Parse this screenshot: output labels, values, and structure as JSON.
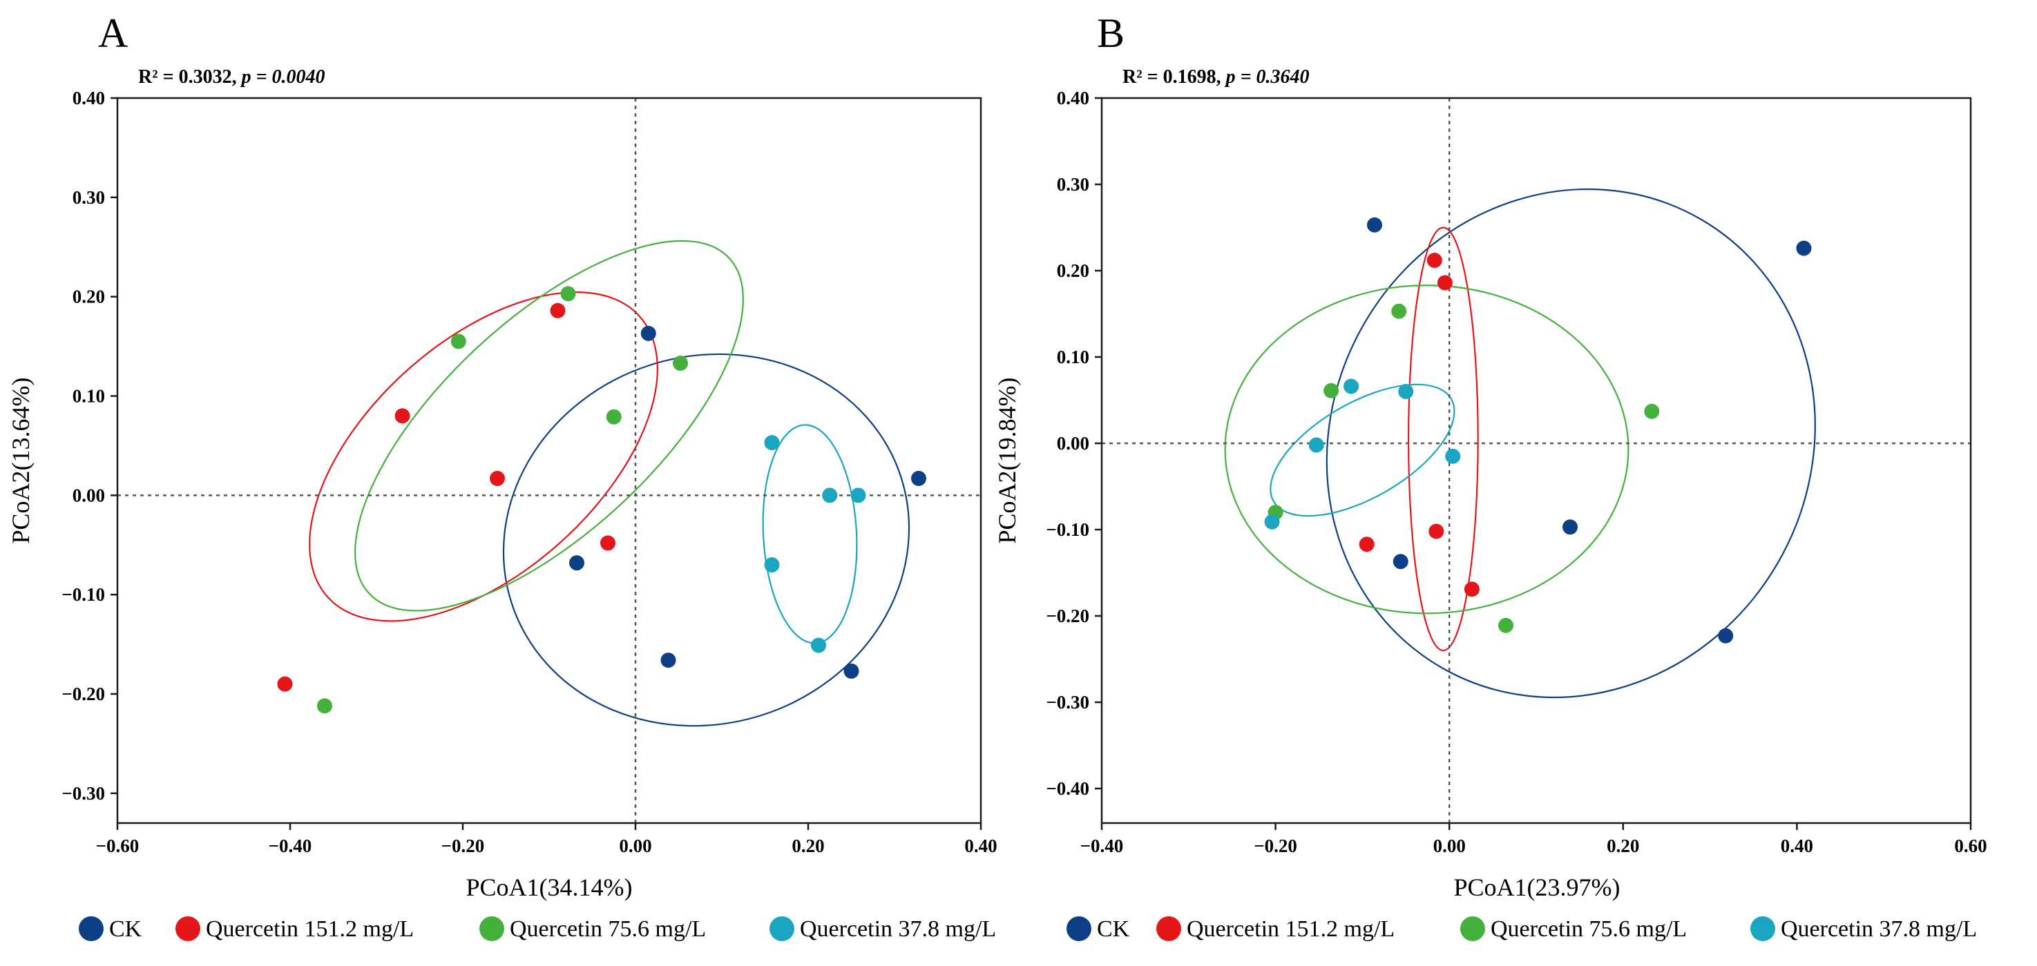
{
  "colors": {
    "CK": "#0d3f87",
    "Q151": "#e5161a",
    "Q75": "#43b13c",
    "Q37": "#1aa5c1"
  },
  "chart_data": [
    {
      "type": "scatter",
      "panel": "A",
      "stat_r2": "R² = 0.3032, ",
      "stat_p": "p = 0.0040",
      "xlabel": "PCoA1(34.14%)",
      "ylabel": "PCoA2(13.64%)",
      "xlim": [
        -0.6,
        0.4
      ],
      "ylim": [
        -0.33,
        0.4
      ],
      "xticks": [
        -0.6,
        -0.4,
        -0.2,
        0.0,
        0.2,
        0.4
      ],
      "xtick_labels": [
        "−0.60",
        "−0.40",
        "−0.20",
        "0.00",
        "0.20",
        "0.40"
      ],
      "yticks": [
        -0.3,
        -0.2,
        -0.1,
        0.0,
        0.1,
        0.2,
        0.3,
        0.4
      ],
      "ytick_labels": [
        "−0.30",
        "−0.20",
        "−0.10",
        "0.00",
        "0.10",
        "0.20",
        "0.30",
        "0.40"
      ],
      "grid": false,
      "series": [
        {
          "key": "CK",
          "points": [
            [
              0.015,
              0.163
            ],
            [
              -0.068,
              -0.068
            ],
            [
              0.038,
              -0.166
            ],
            [
              0.25,
              -0.177
            ],
            [
              0.328,
              0.017
            ]
          ],
          "ellipse": {
            "cx": 0.082,
            "cy": -0.045,
            "rx": 0.237,
            "ry": 0.185,
            "angle": 18
          }
        },
        {
          "key": "Q151",
          "points": [
            [
              -0.09,
              0.186
            ],
            [
              -0.27,
              0.08
            ],
            [
              -0.16,
              0.017
            ],
            [
              -0.032,
              -0.048
            ],
            [
              -0.406,
              -0.19
            ]
          ],
          "ellipse": {
            "cx": -0.176,
            "cy": 0.039,
            "rx": 0.243,
            "ry": 0.116,
            "angle": 42
          }
        },
        {
          "key": "Q75",
          "points": [
            [
              -0.078,
              0.203
            ],
            [
              -0.205,
              0.155
            ],
            [
              0.052,
              0.133
            ],
            [
              -0.025,
              0.079
            ],
            [
              -0.36,
              -0.212
            ]
          ],
          "ellipse": {
            "cx": -0.1,
            "cy": 0.07,
            "rx": 0.285,
            "ry": 0.107,
            "angle": 43
          }
        },
        {
          "key": "Q37",
          "points": [
            [
              0.158,
              0.053
            ],
            [
              0.225,
              0.0
            ],
            [
              0.258,
              0.0
            ],
            [
              0.158,
              -0.07
            ],
            [
              0.212,
              -0.151
            ]
          ],
          "ellipse": {
            "cx": 0.202,
            "cy": -0.039,
            "rx": 0.054,
            "ry": 0.11,
            "angle": 3
          }
        }
      ]
    },
    {
      "type": "scatter",
      "panel": "B",
      "stat_r2": "R² = 0.1698, ",
      "stat_p": "p = 0.3640",
      "xlabel": "PCoA1(23.97%)",
      "ylabel": "PCoA2(19.84%)",
      "xlim": [
        -0.4,
        0.6
      ],
      "ylim": [
        -0.44,
        0.4
      ],
      "xticks": [
        -0.4,
        -0.2,
        0.0,
        0.2,
        0.4,
        0.6
      ],
      "xtick_labels": [
        "−0.40",
        "−0.20",
        "0.00",
        "0.20",
        "0.40",
        "0.60"
      ],
      "yticks": [
        -0.4,
        -0.3,
        -0.2,
        -0.1,
        0.0,
        0.1,
        0.2,
        0.3,
        0.4
      ],
      "ytick_labels": [
        "−0.40",
        "−0.30",
        "−0.20",
        "−0.10",
        "0.00",
        "0.10",
        "0.20",
        "0.30",
        "0.40"
      ],
      "grid": false,
      "series": [
        {
          "key": "CK",
          "points": [
            [
              -0.086,
              0.253
            ],
            [
              0.408,
              0.226
            ],
            [
              -0.056,
              -0.137
            ],
            [
              0.139,
              -0.097
            ],
            [
              0.318,
              -0.223
            ]
          ],
          "ellipse": {
            "cx": 0.14,
            "cy": 0.0,
            "rx": 0.275,
            "ry": 0.3,
            "angle": -30
          }
        },
        {
          "key": "Q151",
          "points": [
            [
              -0.017,
              0.212
            ],
            [
              -0.005,
              0.186
            ],
            [
              -0.095,
              -0.117
            ],
            [
              -0.015,
              -0.102
            ],
            [
              0.026,
              -0.169
            ]
          ],
          "ellipse": {
            "cx": -0.007,
            "cy": 0.005,
            "rx": 0.04,
            "ry": 0.245,
            "angle": 0
          }
        },
        {
          "key": "Q75",
          "points": [
            [
              -0.058,
              0.153
            ],
            [
              -0.136,
              0.061
            ],
            [
              0.233,
              0.037
            ],
            [
              -0.2,
              -0.08
            ],
            [
              0.065,
              -0.211
            ]
          ],
          "ellipse": {
            "cx": -0.026,
            "cy": -0.007,
            "rx": 0.232,
            "ry": 0.19,
            "angle": 0
          }
        },
        {
          "key": "Q37",
          "points": [
            [
              -0.113,
              0.066
            ],
            [
              -0.05,
              0.06
            ],
            [
              -0.153,
              -0.002
            ],
            [
              0.004,
              -0.015
            ],
            [
              -0.204,
              -0.091
            ]
          ],
          "ellipse": {
            "cx": -0.1,
            "cy": -0.008,
            "rx": 0.118,
            "ry": 0.055,
            "angle": 30
          }
        }
      ]
    }
  ],
  "legend": [
    {
      "key": "CK",
      "label": "CK"
    },
    {
      "key": "Q151",
      "label": "Quercetin 151.2 mg/L"
    },
    {
      "key": "Q75",
      "label": "Quercetin 75.6 mg/L"
    },
    {
      "key": "Q37",
      "label": "Quercetin 37.8 mg/L"
    },
    {
      "key": "CK",
      "label": "CK"
    },
    {
      "key": "Q151",
      "label": "Quercetin 151.2 mg/L"
    },
    {
      "key": "Q75",
      "label": "Quercetin 75.6 mg/L"
    },
    {
      "key": "Q37",
      "label": "Quercetin 37.8 mg/L"
    }
  ]
}
